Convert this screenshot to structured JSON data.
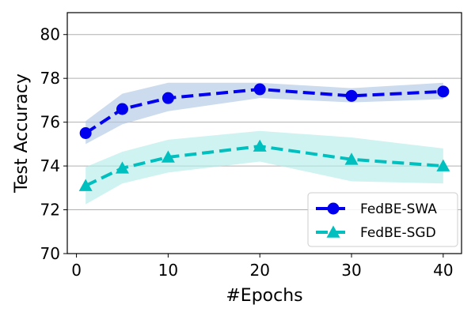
{
  "chart_data": {
    "type": "line",
    "title": "",
    "xlabel": "#Epochs",
    "ylabel": "Test Accuracy",
    "xlim": [
      -1,
      42
    ],
    "ylim": [
      70,
      81
    ],
    "x_ticks": [
      0,
      10,
      20,
      30,
      40
    ],
    "y_ticks": [
      70,
      72,
      74,
      76,
      78,
      80
    ],
    "grid": "horizontal",
    "legend_position": "bottom-right",
    "x": [
      1,
      5,
      10,
      20,
      30,
      40
    ],
    "series": [
      {
        "name": "FedBE-SWA",
        "values": [
          75.5,
          76.6,
          77.1,
          77.5,
          77.2,
          77.4
        ],
        "lower": [
          75.0,
          75.9,
          76.5,
          77.1,
          76.9,
          77.05
        ],
        "upper": [
          76.05,
          77.3,
          77.8,
          77.8,
          77.55,
          77.8
        ],
        "color": "#0000ee",
        "band_color": "#b0c8e4",
        "marker": "circle"
      },
      {
        "name": "FedBE-SGD",
        "values": [
          73.1,
          73.9,
          74.4,
          74.9,
          74.3,
          74.0
        ],
        "lower": [
          72.25,
          73.2,
          73.7,
          74.2,
          73.3,
          73.2
        ],
        "upper": [
          73.95,
          74.65,
          75.2,
          75.6,
          75.3,
          74.8
        ],
        "color": "#00bfbf",
        "band_color": "#b3ece9",
        "marker": "triangle"
      }
    ]
  }
}
